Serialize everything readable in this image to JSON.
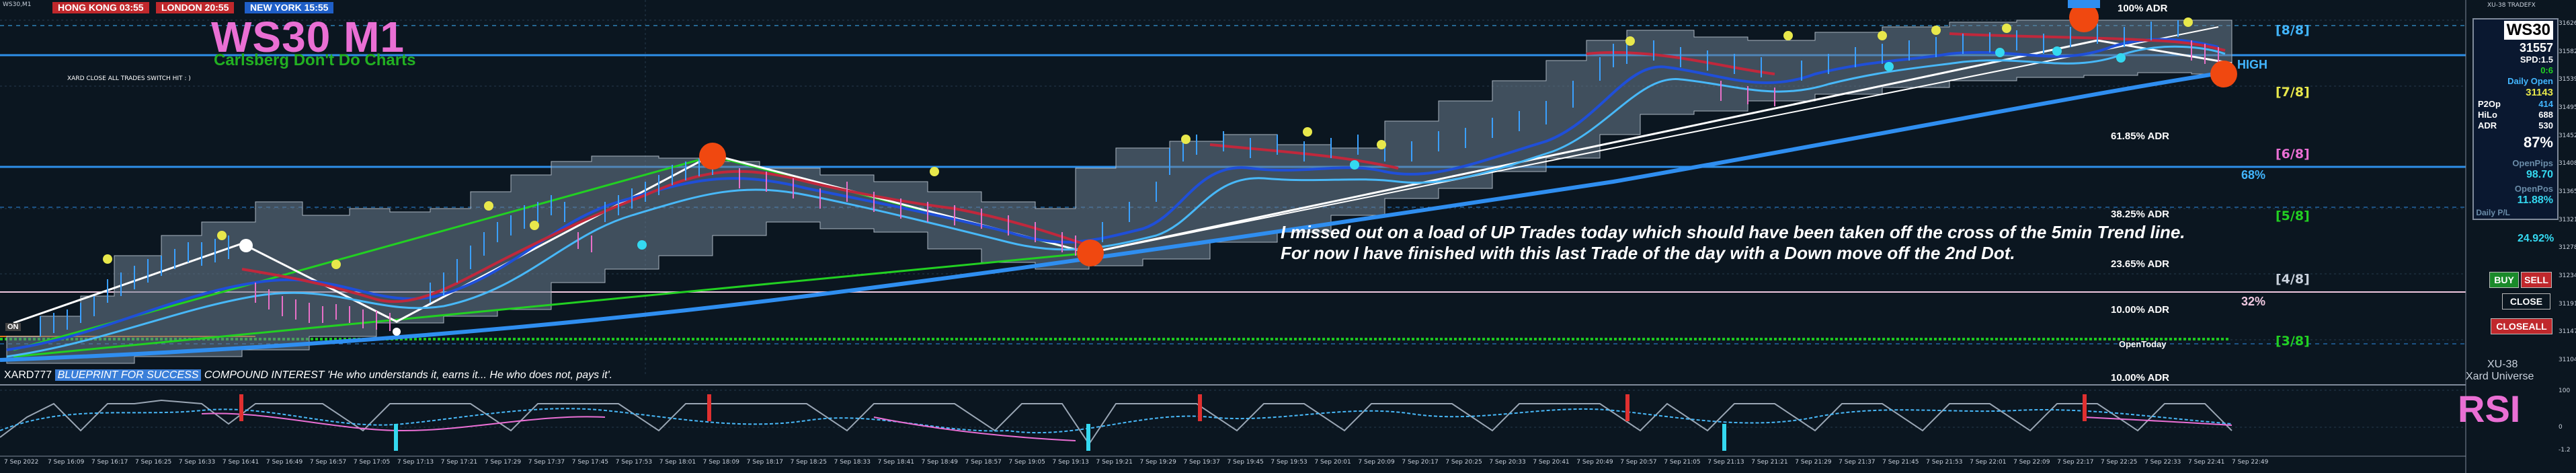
{
  "window": {
    "title": "WS30,M1",
    "indicator_title": "XU-38 TRADEFX"
  },
  "sessions": [
    {
      "label": "HONG KONG 03:55",
      "color": "#c0282c"
    },
    {
      "label": "LONDON  20:55",
      "color": "#c0282c"
    },
    {
      "label": "NEW YORK  15:55",
      "color": "#1f5fc8"
    }
  ],
  "header": {
    "title": "WS30 M1",
    "subtitle": "Carlsberg Don't Do Charts",
    "small_label": "XARD CLOSE ALL TRADES SWITCH HIT : )"
  },
  "adr_labels": {
    "top": "100% ADR",
    "l6185": "61.85% ADR",
    "l3825": "38.25% ADR",
    "l2365": "23.65% ADR",
    "l10": "10.00% ADR",
    "open_today": "OpenToday",
    "l10b": "10.00% ADR"
  },
  "murrey": {
    "m8": "[8/8]",
    "m7": "[7/8]",
    "m6": "[6/8]",
    "m5": "[5/8]",
    "m4": "[4/8]",
    "m3": "[3/8]"
  },
  "markers": {
    "high": "HIGH",
    "pct68": "68%",
    "pct32": "32%",
    "left_tag": "ON"
  },
  "comment": {
    "line1": "I missed out on a load of UP Trades today which should have been taken off the cross of the 5min Trend line.",
    "line2": "For now I have finished with this last Trade of the day with a Down move off the 2nd Dot."
  },
  "footer": {
    "prefix": "XARD777",
    "blueprint": "BLUEPRINT FOR SUCCESS",
    "compound": "COMPOUND INTEREST 'He who understands it, earns it... He who does not, pays it'."
  },
  "info_panel": {
    "symbol": "WS30",
    "price": "31557",
    "spd_label": "SPD:1.5",
    "ratio": "0:6",
    "daily_open_label": "Daily Open",
    "daily_open": "31143",
    "p2op_label": "P2Op",
    "p2op": "414",
    "hil_label": "HiLo",
    "hil": "688",
    "adr_label": "ADR",
    "adr": "530",
    "pct": "87%",
    "open_pips_label": "OpenPips",
    "open_pips": "98.70",
    "open_pos_label": "OpenPos",
    "open_pos": "11.88%",
    "daily_pl_label": "Daily P/L",
    "daily_pl": "24.92%"
  },
  "buttons": {
    "buy": "BUY",
    "sell": "SELL",
    "close": "CLOSE",
    "close_all": "CLOSEALL"
  },
  "brand": {
    "code": "XU-38",
    "name": "Xard Universe"
  },
  "rsi": {
    "label": "RSI"
  },
  "time_axis": [
    "7 Sep 2022",
    "7 Sep 16:09",
    "7 Sep 16:17",
    "7 Sep 16:25",
    "7 Sep 16:33",
    "7 Sep 16:41",
    "7 Sep 16:49",
    "7 Sep 16:57",
    "7 Sep 17:05",
    "7 Sep 17:13",
    "7 Sep 17:21",
    "7 Sep 17:29",
    "7 Sep 17:37",
    "7 Sep 17:45",
    "7 Sep 17:53",
    "7 Sep 18:01",
    "7 Sep 18:09",
    "7 Sep 18:17",
    "7 Sep 18:25",
    "7 Sep 18:33",
    "7 Sep 18:41",
    "7 Sep 18:49",
    "7 Sep 18:57",
    "7 Sep 19:05",
    "7 Sep 19:13",
    "7 Sep 19:21",
    "7 Sep 19:29",
    "7 Sep 19:37",
    "7 Sep 19:45",
    "7 Sep 19:53",
    "7 Sep 20:01",
    "7 Sep 20:09",
    "7 Sep 20:17",
    "7 Sep 20:25",
    "7 Sep 20:33",
    "7 Sep 20:41",
    "7 Sep 20:49",
    "7 Sep 20:57",
    "7 Sep 21:05",
    "7 Sep 21:13",
    "7 Sep 21:21",
    "7 Sep 21:29",
    "7 Sep 21:37",
    "7 Sep 21:45",
    "7 Sep 21:53",
    "7 Sep 22:01",
    "7 Sep 22:09",
    "7 Sep 22:17",
    "7 Sep 22:25",
    "7 Sep 22:33",
    "7 Sep 22:41",
    "7 Sep 22:49"
  ],
  "price_axis": [
    "31626.00",
    "31582.50",
    "31539.00",
    "31495.50",
    "31452.00",
    "31408.50",
    "31365.00",
    "31321.50",
    "31278.00",
    "31234.50",
    "31191.00",
    "31147.50",
    "31104.00"
  ],
  "rsi_axis": [
    "100",
    "0",
    "-1.2"
  ],
  "colors": {
    "background": "#0b1620",
    "pink": "#ea6fd4",
    "green": "#22b022",
    "blue": "#2f8ef0",
    "gold": "#e8e84b",
    "cyan": "#34d8f0",
    "red_bar": "#e03030",
    "orange_dot": "#f04810"
  }
}
